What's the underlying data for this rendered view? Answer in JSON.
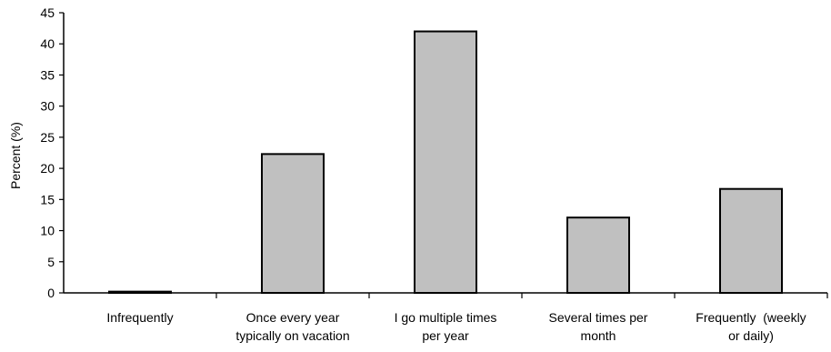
{
  "chart_data": {
    "type": "bar",
    "title": "",
    "xlabel": "",
    "ylabel": "Percent (%)",
    "ylim": [
      0,
      45
    ],
    "yticks": [
      0,
      5,
      10,
      15,
      20,
      25,
      30,
      35,
      40,
      45
    ],
    "grid": false,
    "legend": "none",
    "categories": [
      [
        "Infrequently"
      ],
      [
        "Once every year",
        "typically on vacation"
      ],
      [
        "I go multiple times",
        "per year"
      ],
      [
        "Several times per",
        "month"
      ],
      [
        "Frequently  (weekly",
        "or daily)"
      ]
    ],
    "values": [
      0.2,
      22.3,
      42.0,
      12.1,
      16.7
    ],
    "colors": {
      "bar_fill": "#c0c0c0",
      "bar_stroke": "#000000",
      "axis": "#000000"
    }
  }
}
